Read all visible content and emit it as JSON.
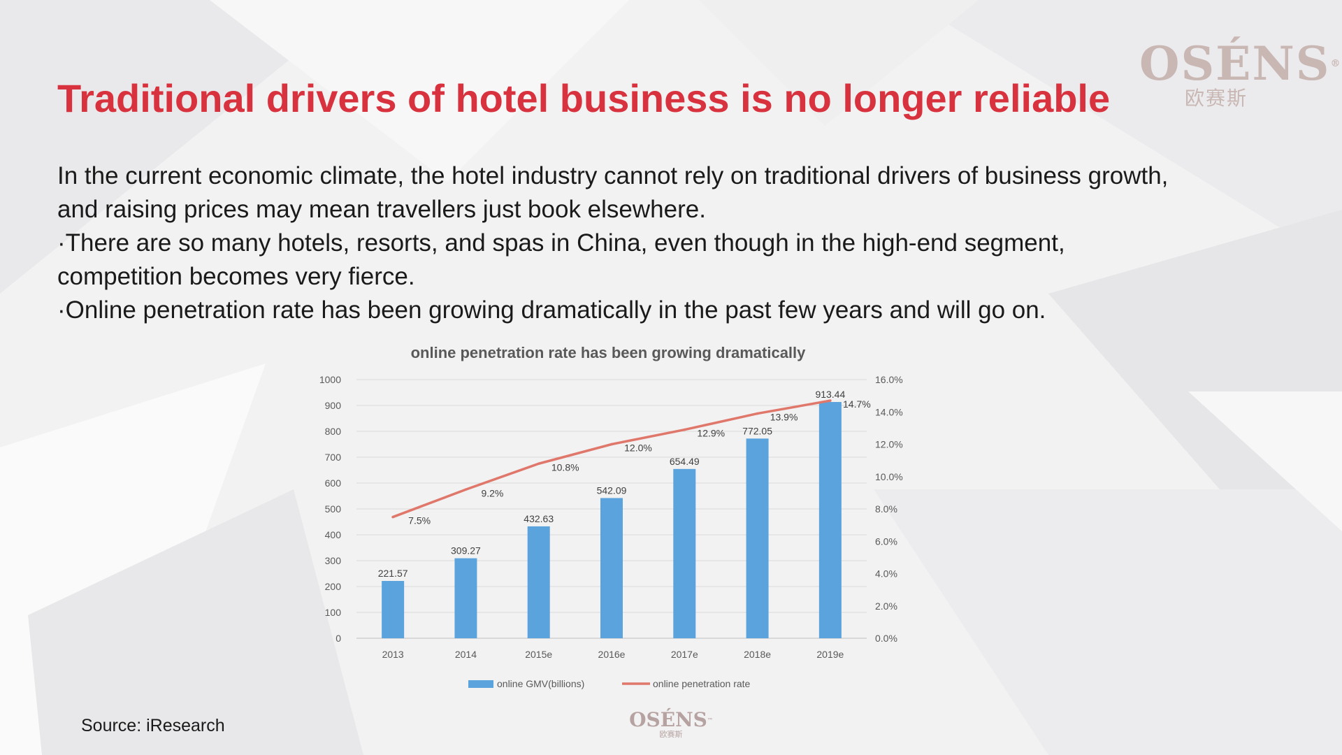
{
  "slide": {
    "title": "Traditional drivers of hotel business is no longer reliable",
    "paragraphs": [
      "In the current economic climate, the hotel industry cannot rely on traditional drivers of business growth, and raising prices may mean travellers just book elsewhere.",
      "·There are so many hotels, resorts, and spas in China, even though in the high-end segment, competition becomes very fierce.",
      "·Online penetration rate has been growing dramatically in the past few years and will go on."
    ],
    "source": "Source: iResearch"
  },
  "logo": {
    "brand": "OSÉNS",
    "registered": "®",
    "trademark": "™",
    "chinese": "欧赛斯"
  },
  "colors": {
    "title": "#d8323e",
    "bar": "#5ba3dc",
    "line": "#e0776b"
  },
  "chart_data": {
    "type": "bar",
    "title": "online penetration rate has been growing dramatically",
    "categories": [
      "2013",
      "2014",
      "2015e",
      "2016e",
      "2017e",
      "2018e",
      "2019e"
    ],
    "series": [
      {
        "name": "online GMV(billions)",
        "type": "bar",
        "axis": "left",
        "values": [
          221.57,
          309.27,
          432.63,
          542.09,
          654.49,
          772.05,
          913.44
        ],
        "labels": [
          "221.57",
          "309.27",
          "432.63",
          "542.09",
          "654.49",
          "772.05",
          "913.44"
        ]
      },
      {
        "name": "online penetration rate",
        "type": "line",
        "axis": "right",
        "values": [
          7.5,
          9.2,
          10.8,
          12.0,
          12.9,
          13.9,
          14.7
        ],
        "labels": [
          "7.5%",
          "9.2%",
          "10.8%",
          "12.0%",
          "12.9%",
          "13.9%",
          "14.7%"
        ]
      }
    ],
    "y_left": {
      "range": [
        0,
        1000
      ],
      "ticks": [
        "0",
        "100",
        "200",
        "300",
        "400",
        "500",
        "600",
        "700",
        "800",
        "900",
        "1000"
      ]
    },
    "y_right": {
      "range": [
        0,
        16
      ],
      "ticks": [
        "0.0%",
        "2.0%",
        "4.0%",
        "6.0%",
        "8.0%",
        "10.0%",
        "12.0%",
        "14.0%",
        "16.0%"
      ]
    },
    "grid": true,
    "legend_position": "bottom"
  }
}
